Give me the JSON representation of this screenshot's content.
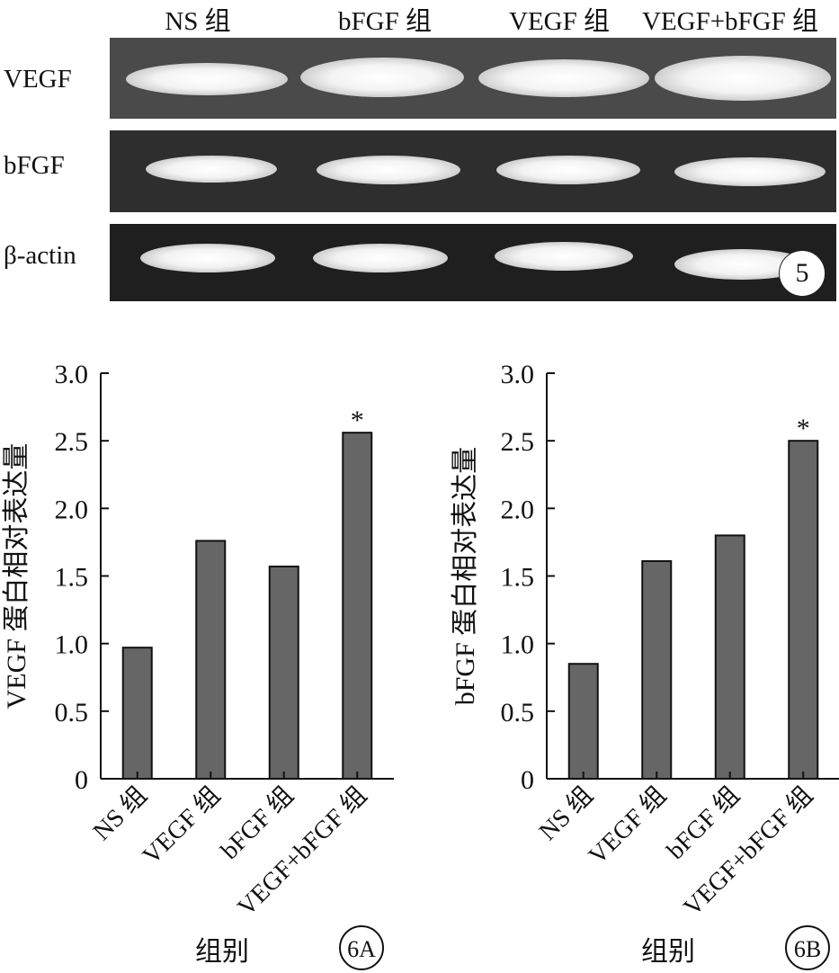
{
  "gel": {
    "columns": [
      "NS 组",
      "bFGF 组",
      "VEGF 组",
      "VEGF+bFGF 组"
    ],
    "rows": [
      "VEGF",
      "bFGF",
      "β-actin"
    ],
    "figure_number": "5"
  },
  "chart_data": [
    {
      "type": "bar",
      "panel_label": "6A",
      "categories": [
        "NS 组",
        "VEGF 组",
        "bFGF 组",
        "VEGF+bFGF 组"
      ],
      "values": [
        0.97,
        1.76,
        1.57,
        2.56
      ],
      "annotations": [
        "",
        "",
        "",
        "*"
      ],
      "xlabel": "组别",
      "ylabel": "VEGF 蛋白相对表达量",
      "ylim": [
        0,
        3.0
      ],
      "yticks": [
        "0",
        "0.5",
        "1.0",
        "1.5",
        "2.0",
        "2.5",
        "3.0"
      ],
      "bar_color": "#666666",
      "grid": false
    },
    {
      "type": "bar",
      "panel_label": "6B",
      "categories": [
        "NS 组",
        "VEGF 组",
        "bFGF 组",
        "VEGF+bFGF 组"
      ],
      "values": [
        0.85,
        1.61,
        1.8,
        2.5
      ],
      "annotations": [
        "",
        "",
        "",
        "*"
      ],
      "xlabel": "组别",
      "ylabel": "bFGF 蛋白相对表达量",
      "ylim": [
        0,
        3.0
      ],
      "yticks": [
        "0",
        "0.5",
        "1.0",
        "1.5",
        "2.0",
        "2.5",
        "3.0"
      ],
      "bar_color": "#666666",
      "grid": false
    }
  ]
}
